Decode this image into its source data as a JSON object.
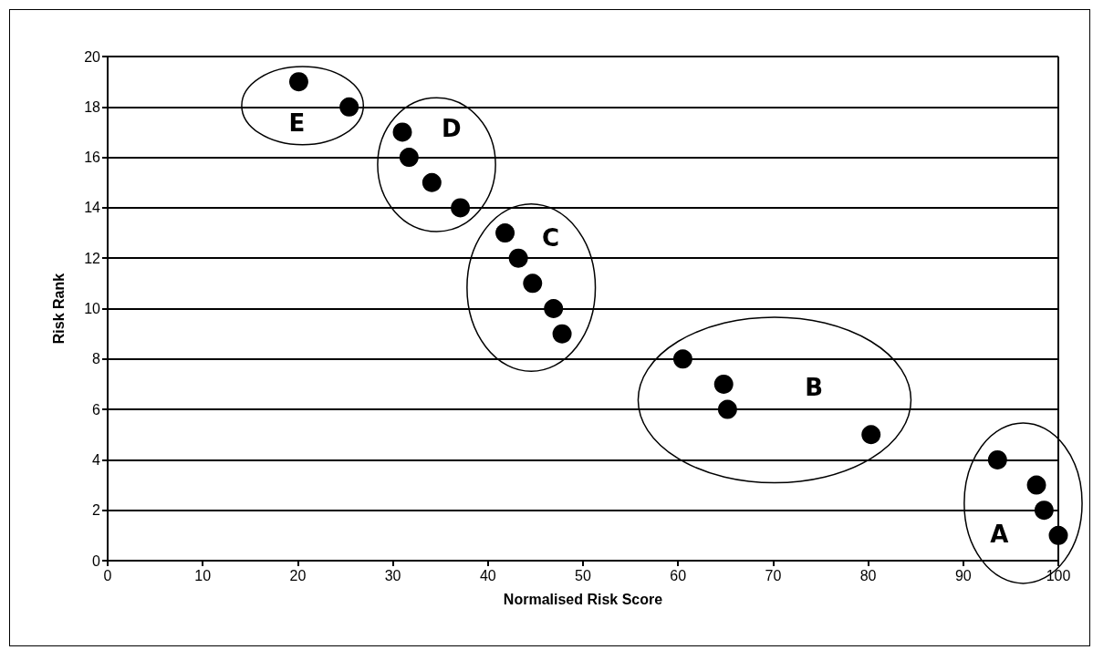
{
  "chart_data": {
    "type": "scatter",
    "xlabel": "Normalised Risk Score",
    "ylabel": "Risk Rank",
    "x": [
      20.1,
      25.4,
      31.0,
      31.7,
      34.1,
      37.1,
      41.8,
      43.2,
      44.7,
      46.9,
      47.8,
      60.5,
      64.8,
      65.2,
      80.3,
      93.6,
      97.7,
      98.5,
      100
    ],
    "values": [
      19,
      18,
      17,
      16,
      15,
      14,
      13,
      12,
      11,
      10,
      9,
      8,
      7,
      6,
      5,
      4,
      3,
      2,
      1
    ],
    "color": "#000000",
    "marker": "circle",
    "xlim": [
      0,
      100
    ],
    "xticks": [
      0,
      10,
      20,
      30,
      40,
      50,
      60,
      70,
      80,
      90,
      100
    ],
    "ylim": [
      0,
      20
    ],
    "yticks": [
      0,
      2,
      4,
      6,
      8,
      10,
      12,
      14,
      16,
      18,
      20
    ],
    "grid": "y",
    "annotations": [
      "E",
      "D",
      "C",
      "B",
      "A"
    ]
  }
}
